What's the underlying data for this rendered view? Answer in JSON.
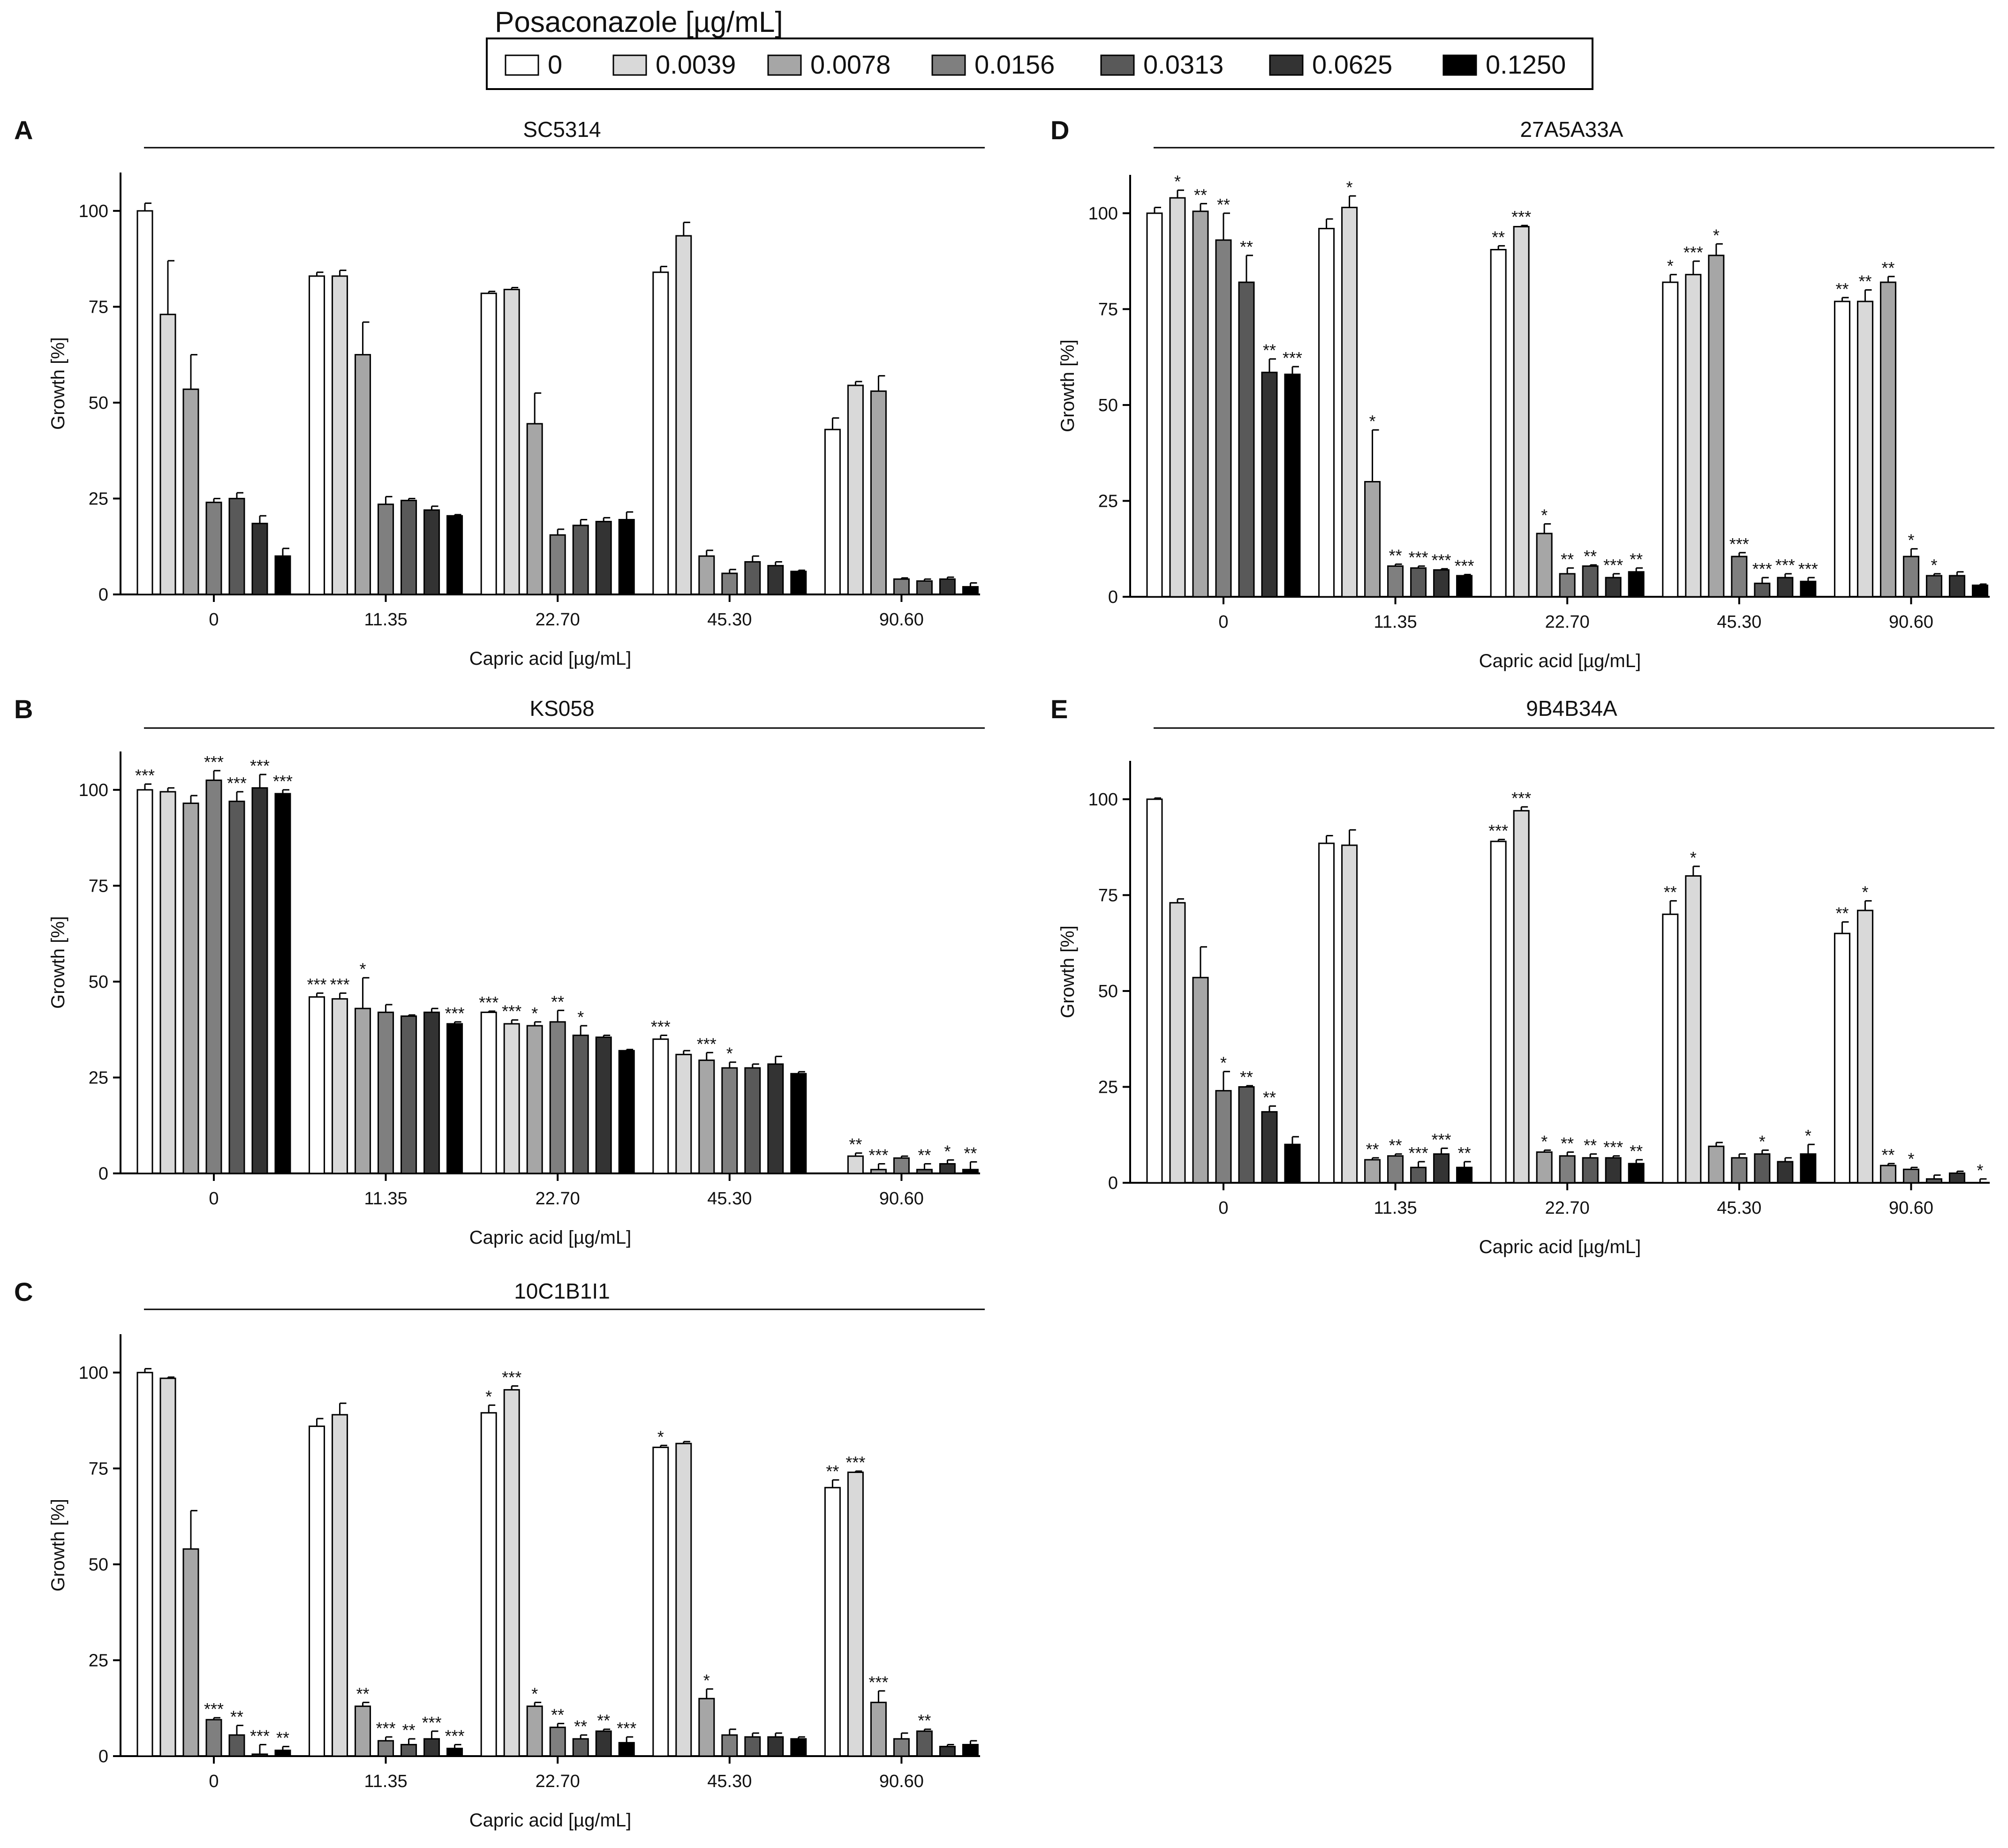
{
  "legend": {
    "title": "Posaconazole [µg/mL]",
    "concentrations": [
      "0",
      "0.0039",
      "0.0078",
      "0.0156",
      "0.0313",
      "0.0625",
      "0.1250"
    ],
    "fill_colors": [
      "#ffffff",
      "#d9d9d9",
      "#a6a6a6",
      "#7f7f7f",
      "#595959",
      "#333333",
      "#000000"
    ]
  },
  "chart_data": [
    {
      "type": "bar",
      "panel": "A",
      "title": "SC5314",
      "xlabel": "Capric acid [µg/mL]",
      "ylabel": "Growth [%]",
      "categories": [
        "0",
        "11.35",
        "22.70",
        "45.30",
        "90.60"
      ],
      "yticks": [
        0,
        25,
        50,
        75,
        100
      ],
      "ylim": [
        0,
        110
      ],
      "series": [
        {
          "name": "0",
          "values": [
            100,
            83,
            78.5,
            84,
            43
          ],
          "errors": [
            2,
            1,
            0.5,
            1.5,
            3
          ],
          "sig": [
            "",
            "",
            "",
            "",
            ""
          ]
        },
        {
          "name": "0.0039",
          "values": [
            73,
            83,
            79.5,
            93.5,
            54.5
          ],
          "errors": [
            14,
            1.5,
            0.5,
            3.5,
            1
          ],
          "sig": [
            "",
            "",
            "",
            "",
            ""
          ]
        },
        {
          "name": "0.0078",
          "values": [
            53.5,
            62.5,
            44.5,
            10,
            53
          ],
          "errors": [
            9,
            8.5,
            8,
            1.5,
            4
          ],
          "sig": [
            "",
            "",
            "",
            "",
            ""
          ]
        },
        {
          "name": "0.0156",
          "values": [
            24,
            23.5,
            15.5,
            5.5,
            4
          ],
          "errors": [
            1,
            2,
            1.5,
            1,
            0.3
          ],
          "sig": [
            "",
            "",
            "",
            "",
            ""
          ]
        },
        {
          "name": "0.0313",
          "values": [
            25,
            24.5,
            18,
            8.5,
            3.5
          ],
          "errors": [
            1.5,
            0.5,
            1.5,
            1.5,
            0.5
          ],
          "sig": [
            "",
            "",
            "",
            "",
            ""
          ]
        },
        {
          "name": "0.0625",
          "values": [
            18.5,
            22,
            19,
            7.5,
            4
          ],
          "errors": [
            2,
            1,
            1,
            1,
            0.5
          ],
          "sig": [
            "",
            "",
            "",
            "",
            ""
          ]
        },
        {
          "name": "0.1250",
          "values": [
            10,
            20.5,
            19.5,
            6,
            2
          ],
          "errors": [
            2,
            0.3,
            2,
            0.3,
            1
          ],
          "sig": [
            "",
            "",
            "",
            "",
            ""
          ]
        }
      ]
    },
    {
      "type": "bar",
      "panel": "B",
      "title": "KS058",
      "xlabel": "Capric acid [µg/mL]",
      "ylabel": "Growth [%]",
      "categories": [
        "0",
        "11.35",
        "22.70",
        "45.30",
        "90.60"
      ],
      "yticks": [
        0,
        25,
        50,
        75,
        100
      ],
      "ylim": [
        0,
        110
      ],
      "series": [
        {
          "name": "0",
          "values": [
            100,
            46,
            42,
            35,
            0
          ],
          "errors": [
            1.5,
            1,
            0.3,
            1,
            0
          ],
          "sig": [
            "***",
            "***",
            "***",
            "***",
            ""
          ]
        },
        {
          "name": "0.0039",
          "values": [
            99.5,
            45.5,
            39,
            31,
            4.5
          ],
          "errors": [
            1,
            1.5,
            1,
            1,
            0.8
          ],
          "sig": [
            "",
            "***",
            "***",
            "",
            "**"
          ]
        },
        {
          "name": "0.0078",
          "values": [
            96.5,
            43,
            38.5,
            29.5,
            1
          ],
          "errors": [
            2,
            8,
            1,
            2,
            1.5
          ],
          "sig": [
            "",
            "*",
            "*",
            "***",
            "***"
          ]
        },
        {
          "name": "0.0156",
          "values": [
            102.5,
            42,
            39.5,
            27.5,
            4
          ],
          "errors": [
            2.5,
            2,
            3,
            1.5,
            0.5
          ],
          "sig": [
            "***",
            "",
            "**",
            "*",
            ""
          ]
        },
        {
          "name": "0.0313",
          "values": [
            97,
            41,
            36,
            27.5,
            1
          ],
          "errors": [
            2.5,
            0.3,
            2.5,
            1,
            1.5
          ],
          "sig": [
            "***",
            "",
            "*",
            "",
            "**"
          ]
        },
        {
          "name": "0.0625",
          "values": [
            100.5,
            42,
            35.5,
            28.5,
            2.5
          ],
          "errors": [
            3.5,
            1,
            0.5,
            2,
            1
          ],
          "sig": [
            "***",
            "",
            "",
            "",
            "*"
          ]
        },
        {
          "name": "0.1250",
          "values": [
            99,
            39,
            32,
            26,
            1
          ],
          "errors": [
            1,
            0.5,
            0.3,
            0.5,
            2
          ],
          "sig": [
            "***",
            "***",
            "",
            "",
            "**"
          ]
        }
      ]
    },
    {
      "type": "bar",
      "panel": "C",
      "title": "10C1B1I1",
      "xlabel": "Capric acid [µg/mL]",
      "ylabel": "Growth [%]",
      "categories": [
        "0",
        "11.35",
        "22.70",
        "45.30",
        "90.60"
      ],
      "yticks": [
        0,
        25,
        50,
        75,
        100
      ],
      "ylim": [
        0,
        110
      ],
      "series": [
        {
          "name": "0",
          "values": [
            100,
            86,
            89.5,
            80.5,
            70
          ],
          "errors": [
            1,
            2,
            2,
            0.5,
            2
          ],
          "sig": [
            "",
            "",
            "*",
            "*",
            "**"
          ]
        },
        {
          "name": "0.0039",
          "values": [
            98.5,
            89,
            95.5,
            81.5,
            74
          ],
          "errors": [
            0.3,
            3,
            1,
            0.5,
            0.3
          ],
          "sig": [
            "",
            "",
            "***",
            "",
            "***"
          ]
        },
        {
          "name": "0.0078",
          "values": [
            54,
            13,
            13,
            15,
            14
          ],
          "errors": [
            10,
            1,
            1,
            2.5,
            3
          ],
          "sig": [
            "",
            "**",
            "*",
            "*",
            "***"
          ]
        },
        {
          "name": "0.0156",
          "values": [
            9.5,
            4,
            7.5,
            5.5,
            4.5
          ],
          "errors": [
            0.5,
            1,
            1,
            1.5,
            1.5
          ],
          "sig": [
            "***",
            "***",
            "**",
            "",
            ""
          ]
        },
        {
          "name": "0.0313",
          "values": [
            5.5,
            3,
            4.5,
            5,
            6.5
          ],
          "errors": [
            2.5,
            1.5,
            1,
            1,
            0.5
          ],
          "sig": [
            "**",
            "**",
            "**",
            "",
            "**"
          ]
        },
        {
          "name": "0.0625",
          "values": [
            0.5,
            4.5,
            6.5,
            5,
            2.5
          ],
          "errors": [
            2.5,
            2,
            0.5,
            1,
            0.5
          ],
          "sig": [
            "***",
            "***",
            "**",
            "",
            ""
          ]
        },
        {
          "name": "0.1250",
          "values": [
            1.5,
            2,
            3.5,
            4.5,
            3
          ],
          "errors": [
            1,
            1,
            1.5,
            0.5,
            1
          ],
          "sig": [
            "**",
            "***",
            "***",
            "",
            ""
          ]
        }
      ]
    },
    {
      "type": "bar",
      "panel": "D",
      "title": "27A5A33A",
      "xlabel": "Capric acid [µg/mL]",
      "ylabel": "Growth [%]",
      "categories": [
        "0",
        "11.35",
        "22.70",
        "45.30",
        "90.60"
      ],
      "yticks": [
        0,
        25,
        50,
        75,
        100
      ],
      "ylim": [
        0,
        110
      ],
      "series": [
        {
          "name": "0",
          "values": [
            100,
            96,
            90.5,
            82,
            77
          ],
          "errors": [
            1.5,
            2.5,
            1,
            2,
            1
          ],
          "sig": [
            "",
            "",
            "**",
            "*",
            "**"
          ]
        },
        {
          "name": "0.0039",
          "values": [
            104,
            101.5,
            96.5,
            84,
            77
          ],
          "errors": [
            2,
            3,
            0.3,
            3.5,
            3
          ],
          "sig": [
            "*",
            "*",
            "***",
            "***",
            "**"
          ]
        },
        {
          "name": "0.0078",
          "values": [
            100.5,
            30,
            16.5,
            89,
            82
          ],
          "errors": [
            2,
            13.5,
            2.5,
            3,
            1.5
          ],
          "sig": [
            "**",
            "*",
            "*",
            "*",
            "**"
          ]
        },
        {
          "name": "0.0156",
          "values": [
            93,
            8,
            6,
            10.5,
            10.5
          ],
          "errors": [
            7,
            0.5,
            1.5,
            1,
            2
          ],
          "sig": [
            "**",
            "**",
            "**",
            "***",
            "*"
          ]
        },
        {
          "name": "0.0313",
          "values": [
            82,
            7.5,
            8,
            3.5,
            5.5
          ],
          "errors": [
            7,
            0.5,
            0.3,
            1.5,
            0.5
          ],
          "sig": [
            "**",
            "***",
            "**",
            "***",
            "*"
          ]
        },
        {
          "name": "0.0625",
          "values": [
            58.5,
            7,
            5,
            5,
            5.5
          ],
          "errors": [
            3.5,
            0.3,
            1,
            1,
            1
          ],
          "sig": [
            "**",
            "***",
            "***",
            "***",
            ""
          ]
        },
        {
          "name": "0.1250",
          "values": [
            58,
            5.5,
            6.5,
            4,
            3
          ],
          "errors": [
            2,
            0.3,
            1,
            1,
            0.3
          ],
          "sig": [
            "***",
            "***",
            "**",
            "***",
            ""
          ]
        }
      ]
    },
    {
      "type": "bar",
      "panel": "E",
      "title": "9B4B34A",
      "xlabel": "Capric acid [µg/mL]",
      "ylabel": "Growth [%]",
      "categories": [
        "0",
        "11.35",
        "22.70",
        "45.30",
        "90.60"
      ],
      "yticks": [
        0,
        25,
        50,
        75,
        100
      ],
      "ylim": [
        0,
        110
      ],
      "series": [
        {
          "name": "0",
          "values": [
            100,
            88.5,
            89,
            70,
            65
          ],
          "errors": [
            0.3,
            2,
            0.5,
            3.5,
            3
          ],
          "sig": [
            "",
            "",
            "***",
            "**",
            "**"
          ]
        },
        {
          "name": "0.0039",
          "values": [
            73,
            88,
            97,
            80,
            71
          ],
          "errors": [
            1,
            4,
            1,
            2.5,
            2.5
          ],
          "sig": [
            "",
            "",
            "***",
            "*",
            "*"
          ]
        },
        {
          "name": "0.0078",
          "values": [
            53.5,
            6,
            8,
            9.5,
            4.5
          ],
          "errors": [
            8,
            0.5,
            0.5,
            1,
            0.5
          ],
          "sig": [
            "",
            "**",
            "*",
            "",
            "**"
          ]
        },
        {
          "name": "0.0156",
          "values": [
            24,
            7,
            7,
            6.5,
            3.5
          ],
          "errors": [
            5,
            0.5,
            1,
            1,
            0.5
          ],
          "sig": [
            "*",
            "**",
            "**",
            "",
            "*"
          ]
        },
        {
          "name": "0.0313",
          "values": [
            25,
            4,
            6.5,
            7.5,
            1
          ],
          "errors": [
            0.3,
            1.5,
            1,
            1,
            1
          ],
          "sig": [
            "**",
            "***",
            "**",
            "*",
            ""
          ]
        },
        {
          "name": "0.0625",
          "values": [
            18.5,
            7.5,
            6.5,
            5.5,
            2.5
          ],
          "errors": [
            1.5,
            1.5,
            0.5,
            1,
            0.5
          ],
          "sig": [
            "**",
            "***",
            "***",
            "",
            ""
          ]
        },
        {
          "name": "0.1250",
          "values": [
            10,
            4,
            5,
            7.5,
            0
          ],
          "errors": [
            2,
            1.5,
            1,
            2.5,
            1
          ],
          "sig": [
            "",
            "**",
            "**",
            "*",
            "*"
          ]
        }
      ]
    }
  ]
}
